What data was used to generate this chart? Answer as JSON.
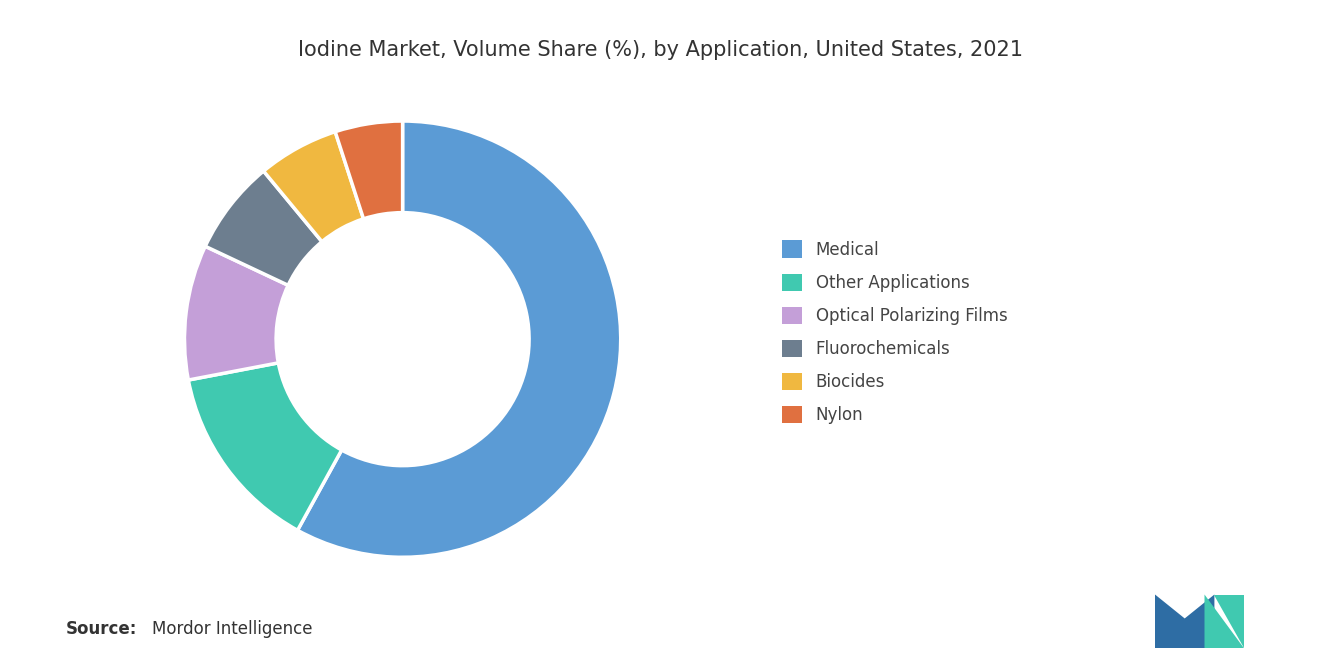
{
  "title": "Iodine Market, Volume Share (%), by Application, United States, 2021",
  "labels": [
    "Medical",
    "Other Applications",
    "Optical Polarizing Films",
    "Fluorochemicals",
    "Biocides",
    "Nylon"
  ],
  "values": [
    58,
    14,
    10,
    7,
    6,
    5
  ],
  "colors": [
    "#5b9bd5",
    "#40c9b0",
    "#c49fd8",
    "#6d7e8f",
    "#f0b840",
    "#e07040"
  ],
  "background_color": "#ffffff",
  "source_label": "Source:",
  "source_detail": "Mordor Intelligence",
  "title_fontsize": 15,
  "legend_fontsize": 12,
  "source_fontsize": 12
}
